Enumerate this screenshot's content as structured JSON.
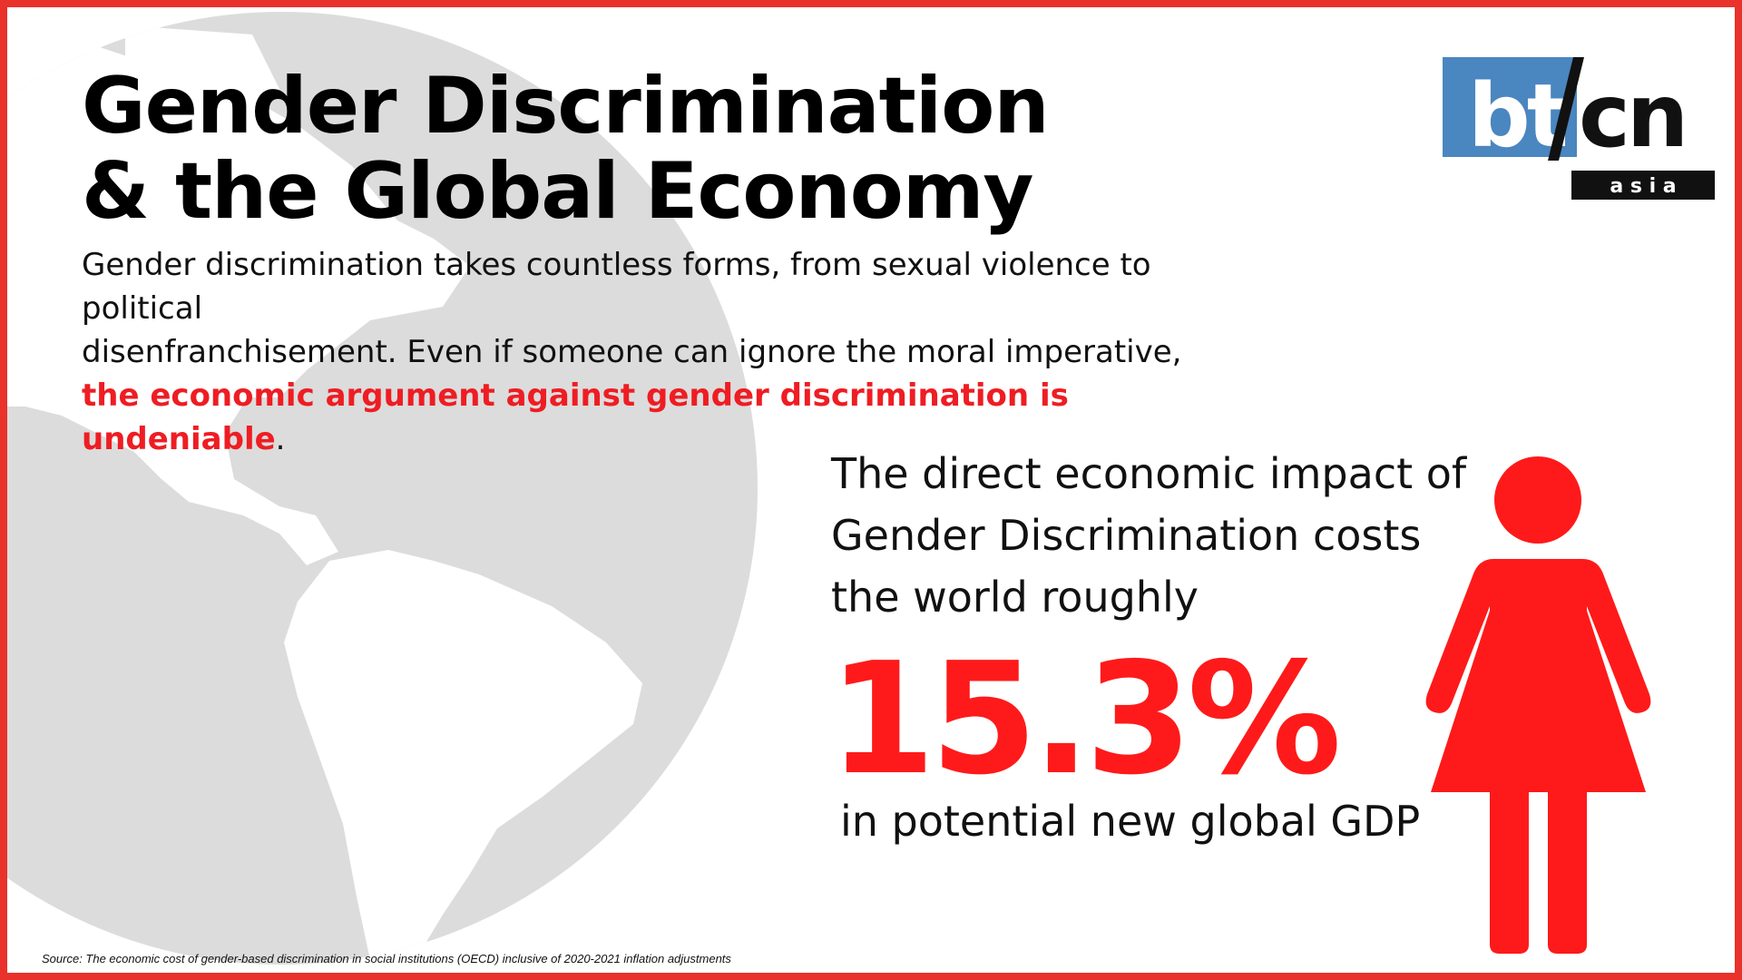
{
  "title_lines": [
    "Gender Discrimination",
    "& the Global Economy"
  ],
  "intro": {
    "line1": "Gender discrimination takes countless forms, from sexual violence to political",
    "line2": "disenfranchisement. Even if someone can ignore the moral imperative,",
    "highlight": "the economic argument against gender discrimination is undeniable",
    "end": "."
  },
  "logo": {
    "left_text": "bt",
    "right_text": "cn",
    "sub_text": "a s i a"
  },
  "impact_lines": [
    "The direct economic impact of",
    "Gender Discrimination costs",
    "the world roughly"
  ],
  "statistic": "15.3%",
  "statistic_caption": "in potential new global GDP",
  "source": "Source: The economic cost of gender-based discrimination in social institutions (OECD) inclusive of 2020-2021 inflation adjustments",
  "icons": {
    "background": "globe-icon",
    "figure": "woman-icon"
  },
  "colors": {
    "border": "#e8322b",
    "accent_red": "#ee1d23",
    "statistic_red": "#fe1a1a",
    "globe": "#dcdcdc",
    "logo_blue": "#4a86bf",
    "text": "#111111"
  }
}
